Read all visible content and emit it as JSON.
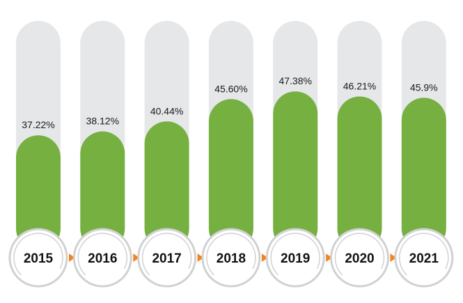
{
  "chart_data": {
    "type": "bar",
    "categories": [
      "2015",
      "2016",
      "2017",
      "2018",
      "2019",
      "2020",
      "2021"
    ],
    "values": [
      37.22,
      38.12,
      40.44,
      45.6,
      47.38,
      46.21,
      45.9
    ],
    "value_labels": [
      "37.22%",
      "38.12%",
      "40.44%",
      "45.60%",
      "47.38%",
      "46.21%",
      "45.9%"
    ],
    "ylim": [
      0,
      100
    ],
    "title": "",
    "xlabel": "",
    "ylabel": "",
    "grid": false,
    "legend": "none"
  },
  "colors": {
    "bar_fill": "#76b041",
    "track_fill": "#e6e7e8",
    "circle_ring": "#d0d1d3",
    "arrow": "#f58220",
    "text": "#111111"
  }
}
